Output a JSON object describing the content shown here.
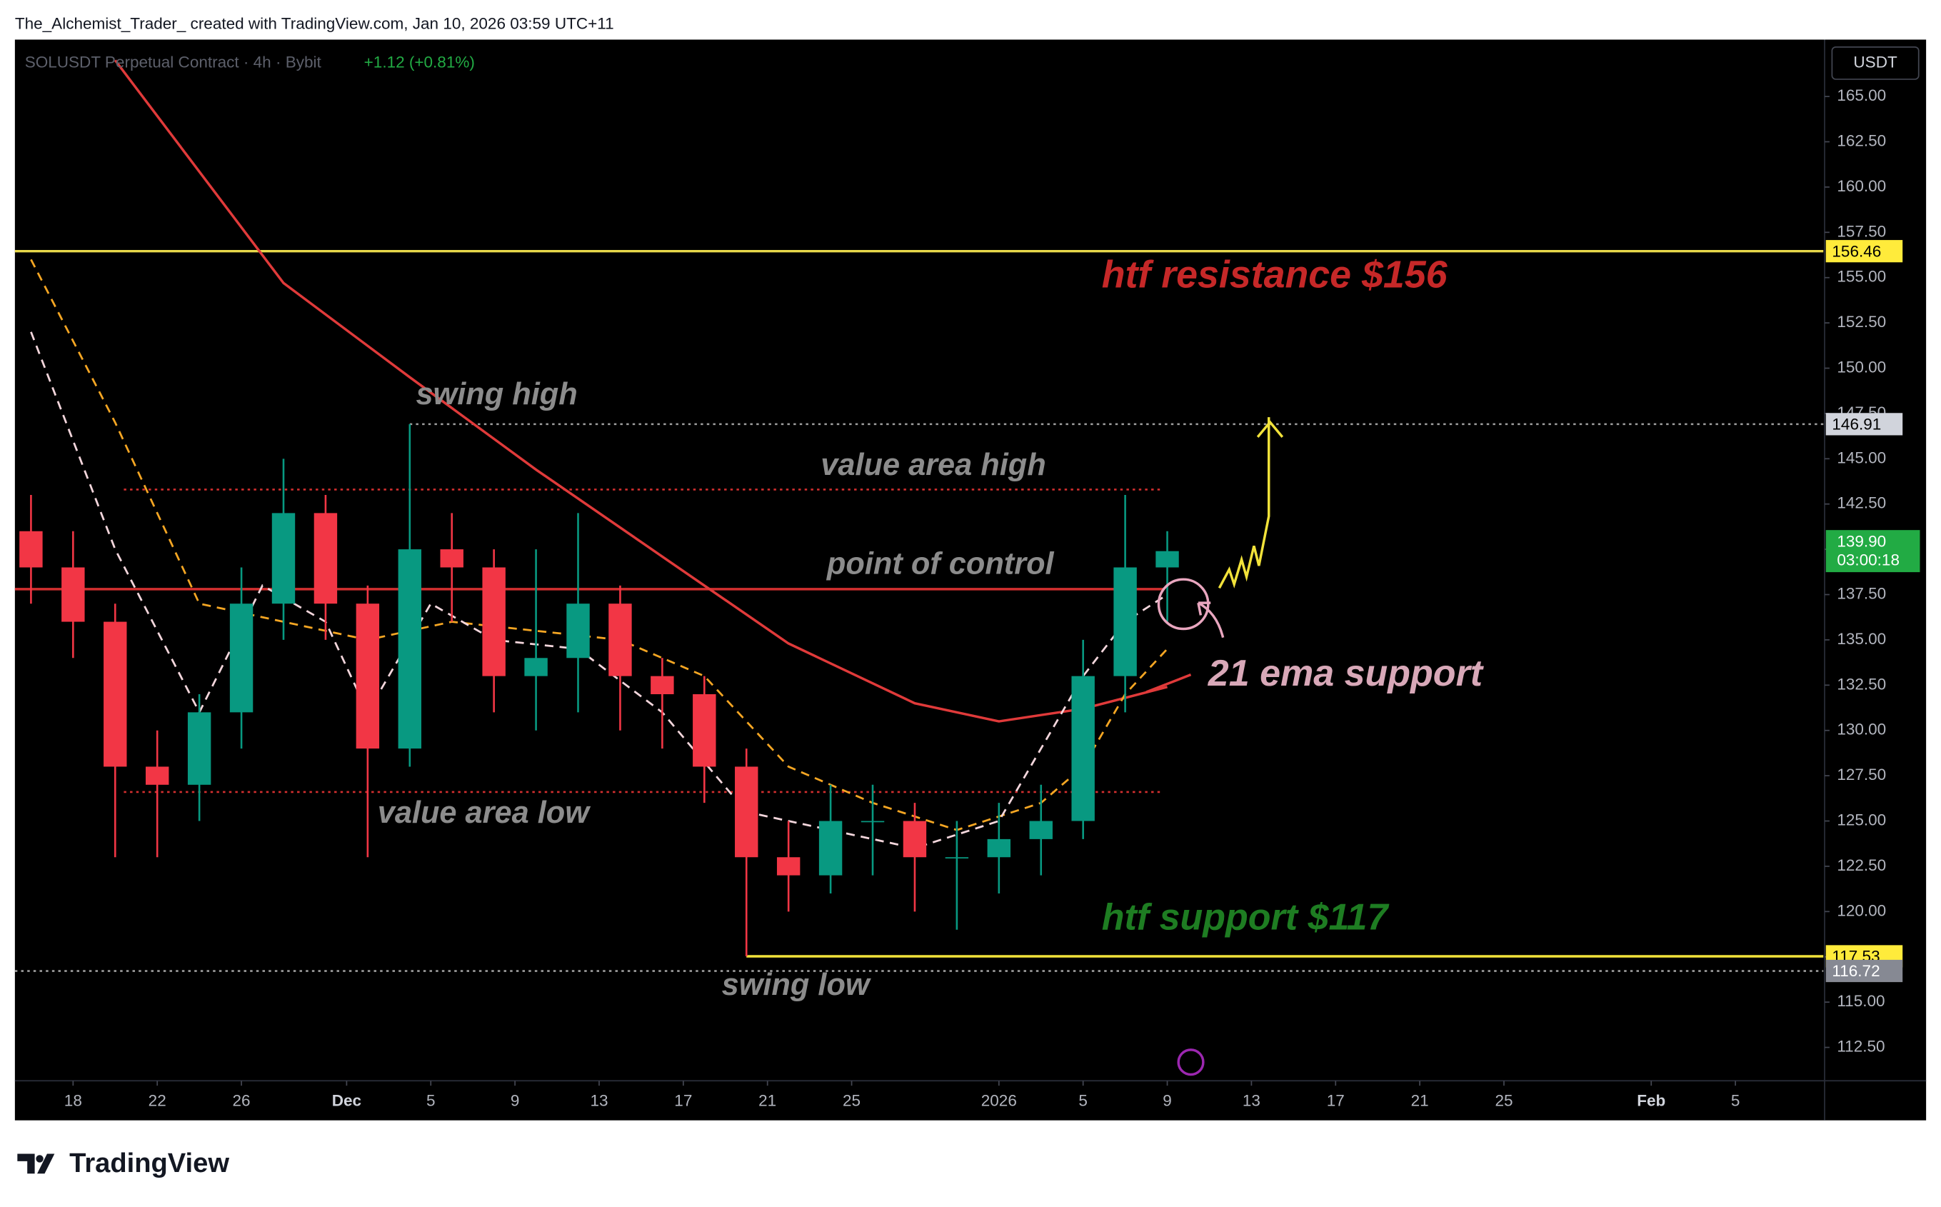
{
  "header": "The_Alchemist_Trader_ created with TradingView.com, Jan 10, 2026 03:59 UTC+11",
  "footer": "TradingView",
  "chart_data": {
    "type": "candlestick",
    "title": "SOLUSDT Perpetual Contract · 4h · Bybit",
    "change": "+1.12 (+0.81%)",
    "currency": "USDT",
    "up_color": "#089981",
    "down_color": "#f23645",
    "xlim": [
      15.235,
      101.18
    ],
    "ylim": [
      110.66,
      168.14
    ],
    "xticks": [
      {
        "value": 18,
        "label": "18"
      },
      {
        "value": 22,
        "label": "22"
      },
      {
        "value": 26,
        "label": "26"
      },
      {
        "value": 31,
        "label": "Dec"
      },
      {
        "value": 35,
        "label": "5"
      },
      {
        "value": 39,
        "label": "9"
      },
      {
        "value": 43,
        "label": "13"
      },
      {
        "value": 47,
        "label": "17"
      },
      {
        "value": 51,
        "label": "21"
      },
      {
        "value": 55,
        "label": "25"
      },
      {
        "value": 62,
        "label": "2026"
      },
      {
        "value": 66,
        "label": "5"
      },
      {
        "value": 70,
        "label": "9"
      },
      {
        "value": 74,
        "label": "13"
      },
      {
        "value": 78,
        "label": "17"
      },
      {
        "value": 82,
        "label": "21"
      },
      {
        "value": 86,
        "label": "25"
      },
      {
        "value": 93,
        "label": "Feb"
      },
      {
        "value": 97,
        "label": "5"
      }
    ],
    "yticks": [
      {
        "value": 112.5,
        "label": "112.50"
      },
      {
        "value": 115,
        "label": "115.00"
      },
      {
        "value": 117.5,
        "label": "117.50"
      },
      {
        "value": 120,
        "label": "120.00"
      },
      {
        "value": 122.5,
        "label": "122.50"
      },
      {
        "value": 125,
        "label": "125.00"
      },
      {
        "value": 127.5,
        "label": "127.50"
      },
      {
        "value": 130,
        "label": "130.00"
      },
      {
        "value": 132.5,
        "label": "132.50"
      },
      {
        "value": 135,
        "label": "135.00"
      },
      {
        "value": 137.5,
        "label": "137.50"
      },
      {
        "value": 140,
        "label": "140.00"
      },
      {
        "value": 142.5,
        "label": "142.50"
      },
      {
        "value": 145,
        "label": "145.00"
      },
      {
        "value": 147.5,
        "label": "147.50"
      },
      {
        "value": 150,
        "label": "150.00"
      },
      {
        "value": 152.5,
        "label": "152.50"
      },
      {
        "value": 155,
        "label": "155.00"
      },
      {
        "value": 157.5,
        "label": "157.50"
      },
      {
        "value": 160,
        "label": "160.00"
      },
      {
        "value": 162.5,
        "label": "162.50"
      },
      {
        "value": 165,
        "label": "165.00"
      }
    ],
    "x": [
      16,
      18,
      20,
      22,
      24,
      26,
      28,
      30,
      32,
      34,
      36,
      38,
      40,
      42,
      44,
      46,
      48,
      50,
      52,
      54,
      56,
      58,
      60,
      62,
      64,
      66,
      68,
      70
    ],
    "open": [
      141,
      139,
      136,
      128,
      127,
      131,
      137,
      142,
      137,
      129,
      140,
      139,
      133,
      134,
      137,
      133,
      132,
      128,
      123,
      122,
      125,
      125,
      123,
      123,
      124,
      125,
      133,
      139
    ],
    "high": [
      143,
      141,
      137,
      130,
      132,
      139,
      145,
      143,
      138,
      146.91,
      142,
      140,
      140,
      142,
      138,
      134,
      133,
      129,
      125,
      127,
      127,
      126,
      125,
      126,
      127,
      135,
      143,
      141
    ],
    "low": [
      137,
      134,
      123,
      123,
      125,
      129,
      135,
      135,
      123,
      128,
      136,
      131,
      130,
      131,
      130,
      129,
      126,
      117.53,
      120,
      121,
      122,
      120,
      119,
      121,
      122,
      124,
      131,
      136
    ],
    "close": [
      139,
      136,
      128,
      127,
      131,
      137,
      142,
      137,
      129,
      140,
      139,
      133,
      134,
      137,
      133,
      132,
      128,
      123,
      122,
      125,
      125,
      123,
      123,
      124,
      125,
      133,
      139,
      139.9
    ],
    "series": [
      {
        "color": "#e03a3a",
        "style": "solid",
        "x": [
          20,
          28,
          34,
          40,
          46,
          52,
          58,
          62,
          66,
          70
        ],
        "values": [
          167,
          154.7,
          149.5,
          144.4,
          139.6,
          134.8,
          131.5,
          130.5,
          131.2,
          132.4
        ]
      },
      {
        "color": "#f5a623",
        "style": "dashed",
        "x": [
          16,
          20,
          24,
          28,
          32,
          36,
          40,
          44,
          48,
          52,
          56,
          60,
          64,
          66,
          68,
          70
        ],
        "values": [
          156,
          147,
          137,
          136,
          135,
          136,
          135.5,
          135,
          133,
          128,
          126,
          124.5,
          126,
          128,
          132,
          134.5
        ]
      },
      {
        "color": "#f3d6dc",
        "style": "dashed",
        "x": [
          16,
          20,
          24,
          27,
          30,
          32,
          35,
          38,
          42,
          46,
          50,
          54,
          58,
          62,
          64,
          66,
          68,
          70
        ],
        "values": [
          152,
          140,
          131,
          138,
          136,
          131,
          137,
          135,
          134.5,
          131,
          125.5,
          124.5,
          123.5,
          125,
          129,
          133,
          136,
          137.5
        ]
      }
    ],
    "levels": [
      {
        "value": 156.46,
        "color": "#e8d84a",
        "style": "solid",
        "tag_bg": "#ffeb3b",
        "tag_fg": "#000000"
      },
      {
        "value": 146.91,
        "color": "#9e9e9e",
        "style": "dotted",
        "tag_bg": "#d1d4dc",
        "tag_fg": "#000000"
      },
      {
        "value": 143.3,
        "color": "#d32f2f",
        "style": "dotted"
      },
      {
        "value": 137.8,
        "color": "#d32f2f",
        "style": "solid"
      },
      {
        "value": 126.6,
        "color": "#d32f2f",
        "style": "dotted"
      },
      {
        "value": 117.53,
        "color": "#f2e23a",
        "style": "solid",
        "tag_bg": "#ffeb3b",
        "tag_fg": "#000000"
      },
      {
        "value": 116.72,
        "color": "#9e9e9e",
        "style": "dotted",
        "tag_bg": "#868993",
        "tag_fg": "#ffffff"
      }
    ],
    "last_price": {
      "value": 139.9,
      "label": "139.90",
      "countdown": "03:00:18",
      "color": "#22ab44"
    },
    "annotations": [
      {
        "text": "htf resistance $156",
        "color": "#c62828"
      },
      {
        "text": "swing high",
        "color": "#8c8c8c"
      },
      {
        "text": "value area high",
        "color": "#8c8c8c"
      },
      {
        "text": "point of control",
        "color": "#8c8c8c"
      },
      {
        "text": "21 ema support",
        "color": "#d8a8b8"
      },
      {
        "text": "value area low",
        "color": "#8c8c8c"
      },
      {
        "text": "htf support $117",
        "color": "#1e7d22"
      },
      {
        "text": "swing low",
        "color": "#8c8c8c"
      }
    ]
  }
}
